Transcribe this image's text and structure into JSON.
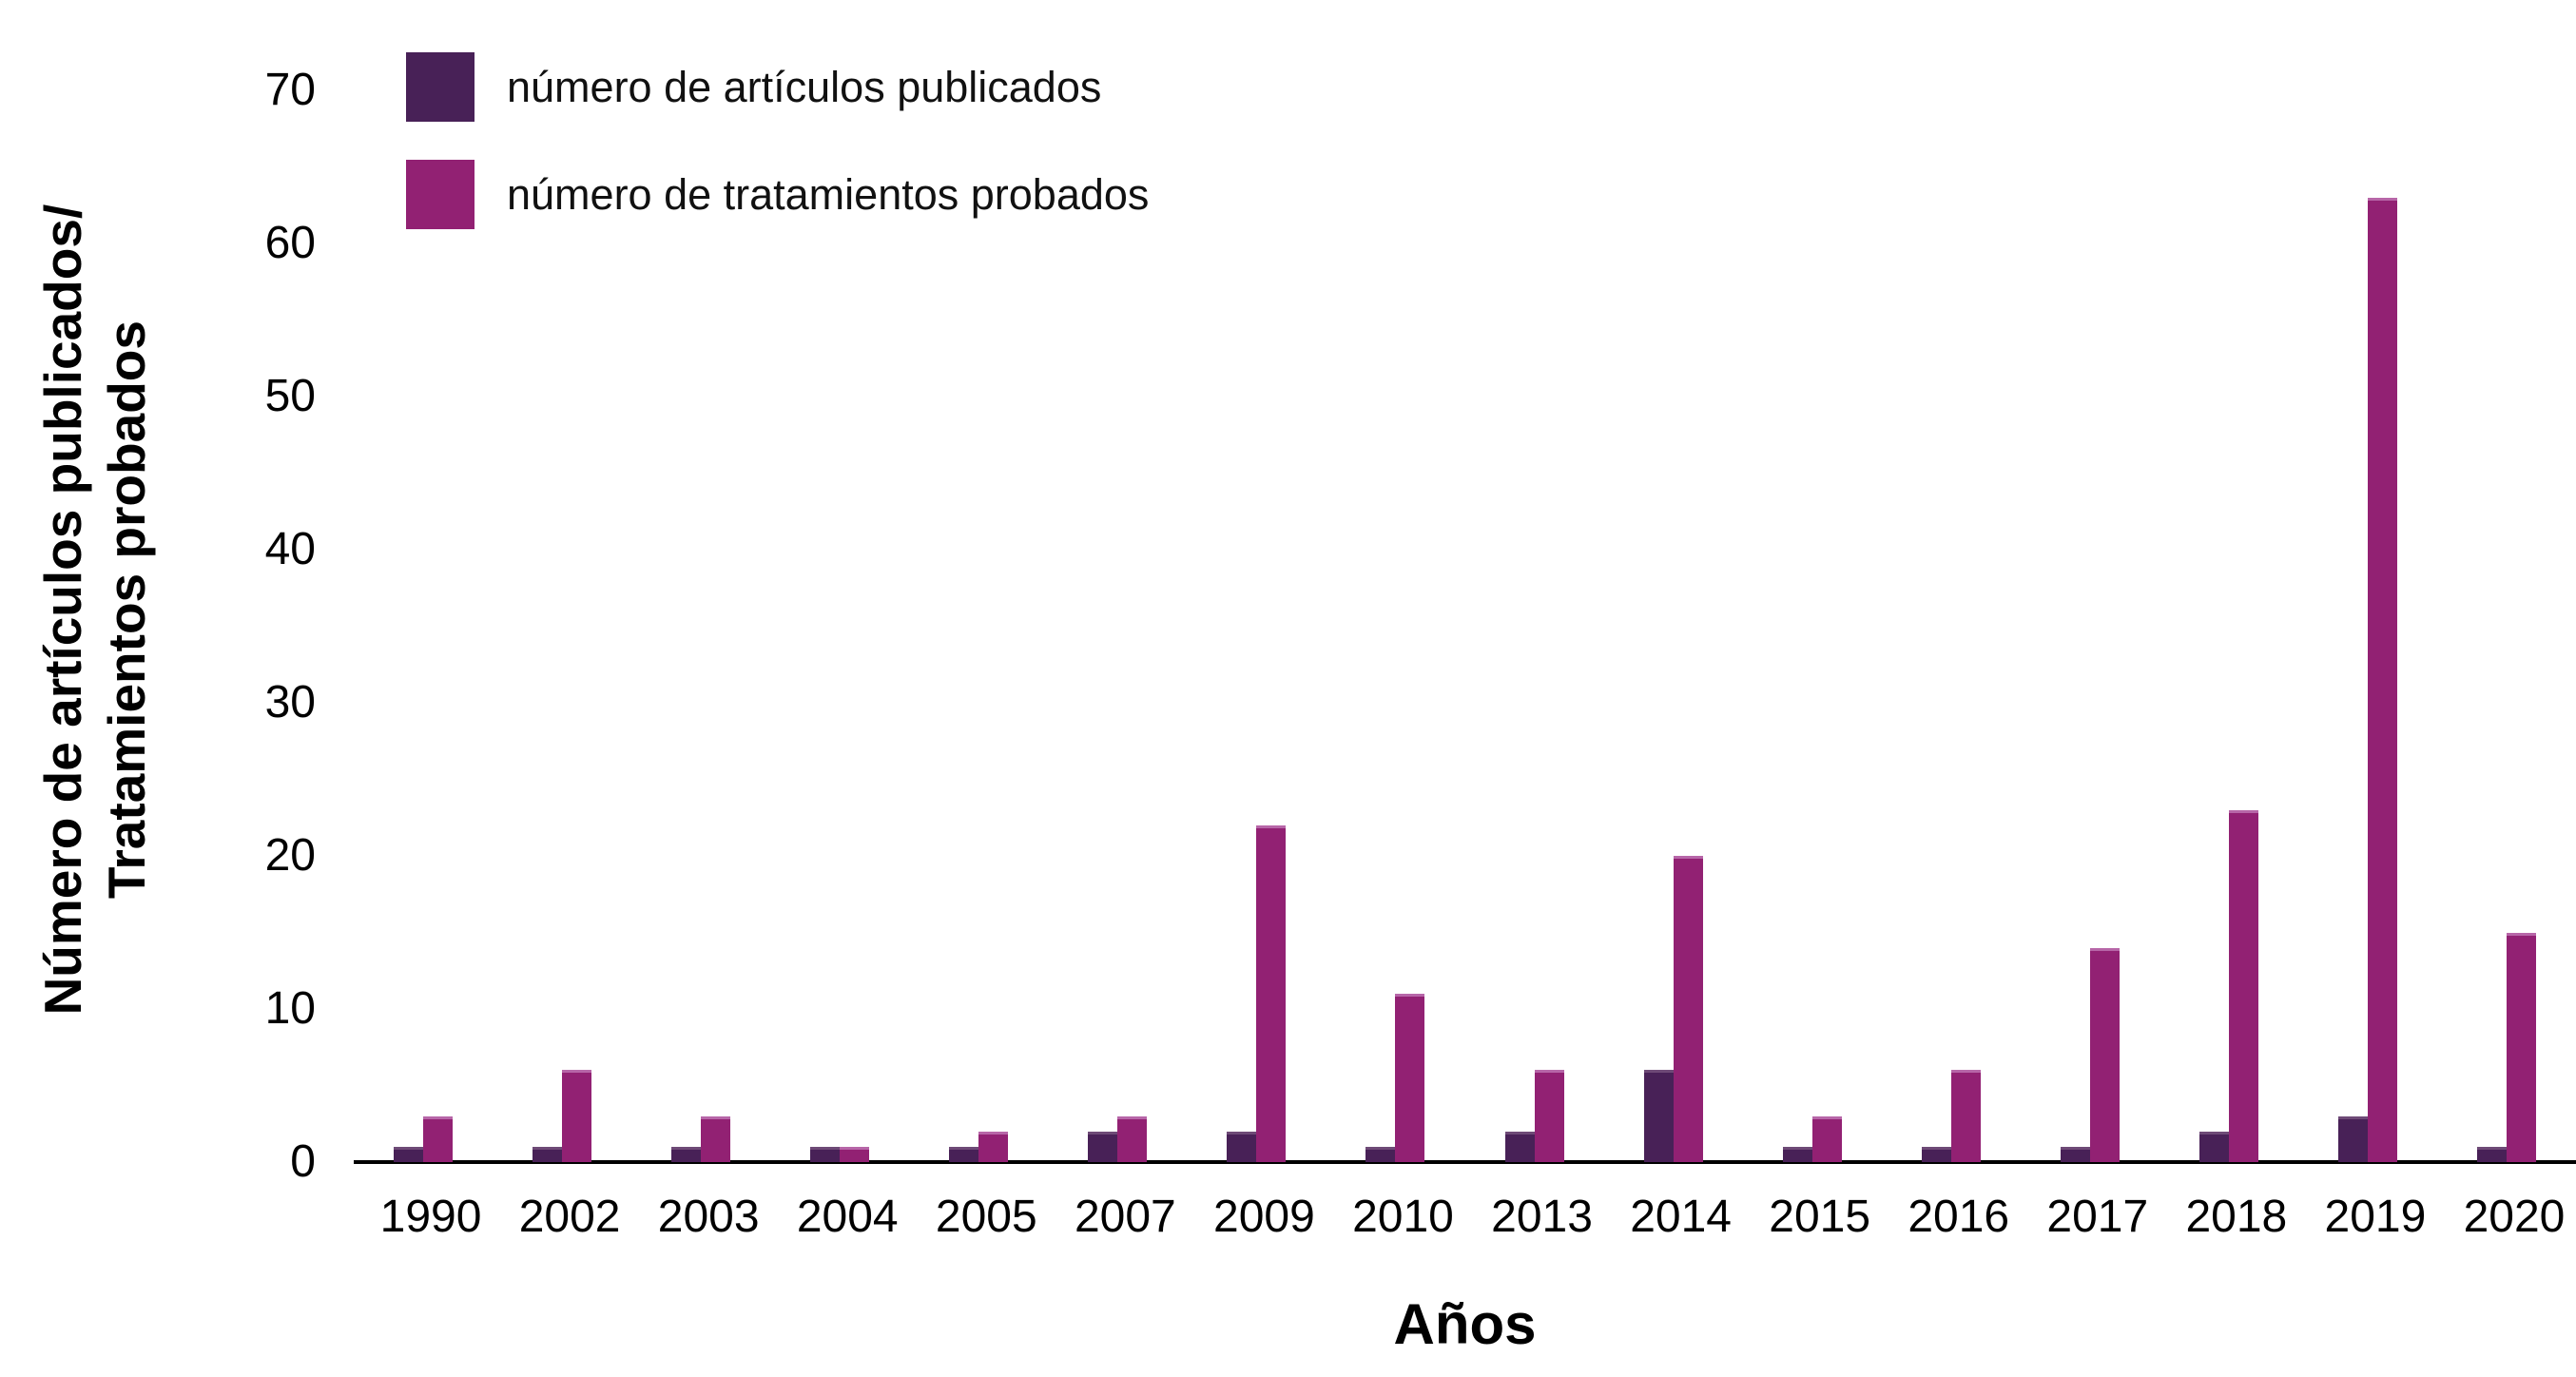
{
  "chart_data": {
    "type": "bar",
    "title": "",
    "categories": [
      "1990",
      "2002",
      "2003",
      "2004",
      "2005",
      "2007",
      "2009",
      "2010",
      "2013",
      "2014",
      "2015",
      "2016",
      "2017",
      "2018",
      "2019",
      "2020"
    ],
    "series": [
      {
        "name": "número de artículos publicados",
        "color": "#482157",
        "cap_color": "#6e4a77",
        "values": [
          1,
          1,
          1,
          1,
          1,
          2,
          2,
          1,
          2,
          6,
          1,
          1,
          1,
          2,
          3,
          1
        ]
      },
      {
        "name": "número de tratamientos probados",
        "color": "#922173",
        "cap_color": "#b766a8",
        "values": [
          3,
          6,
          3,
          1,
          2,
          3,
          22,
          11,
          6,
          20,
          3,
          6,
          14,
          23,
          63,
          15
        ]
      }
    ],
    "xlabel": "Años",
    "ylabel_line1": "Número de artículos publicados/",
    "ylabel_line2": "Tratamientos probados",
    "y_ticks": [
      0,
      10,
      20,
      30,
      40,
      50,
      60,
      70
    ],
    "ylim": [
      0,
      72
    ],
    "grid": false,
    "legend_position": "top-left",
    "axis_color": "#000000",
    "text_color": "#000000",
    "background": "#ffffff"
  }
}
